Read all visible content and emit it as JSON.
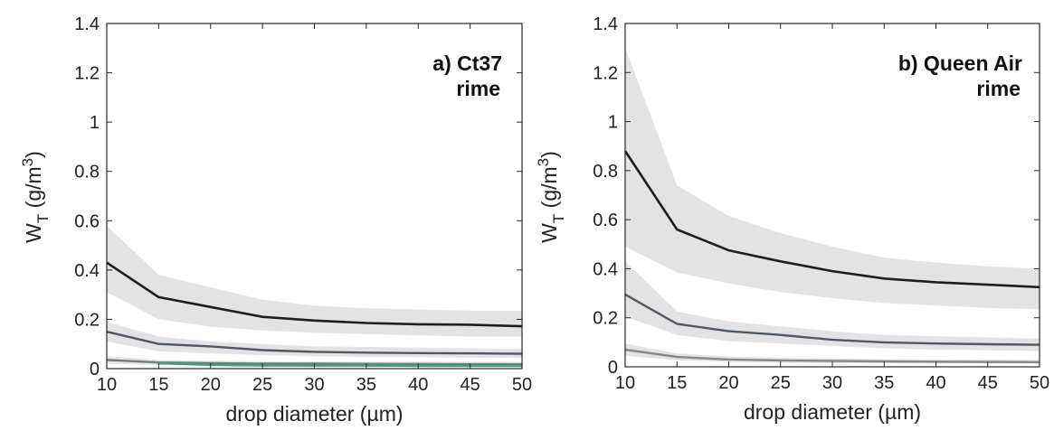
{
  "chart_data": [
    {
      "type": "line",
      "title": "a) Ct37",
      "subtitle": "rime",
      "xlabel": "drop diameter (µm)",
      "ylabel": "W_T (g/m^3)",
      "ylabel_main": "W",
      "ylabel_sub": "T",
      "ylabel_unit": " (g/m",
      "ylabel_exp": "3",
      "ylabel_close": ")",
      "xlim": [
        10,
        50
      ],
      "ylim": [
        0,
        1.4
      ],
      "x_ticks": [
        "10",
        "15",
        "20",
        "25",
        "30",
        "35",
        "40",
        "45",
        "50"
      ],
      "y_ticks": [
        "0",
        "0.2",
        "0.4",
        "0.6",
        "0.8",
        "1",
        "1.2",
        "1.4"
      ],
      "x": [
        10,
        15,
        20,
        25,
        30,
        35,
        40,
        45,
        50
      ],
      "series": [
        {
          "color": "#1e1e1e",
          "band_color": "#e3e3e4",
          "values": [
            0.43,
            0.29,
            0.25,
            0.21,
            0.195,
            0.185,
            0.18,
            0.178,
            0.172
          ],
          "upper": [
            0.58,
            0.38,
            0.33,
            0.28,
            0.255,
            0.245,
            0.24,
            0.235,
            0.235
          ],
          "lower": [
            0.31,
            0.2,
            0.17,
            0.155,
            0.145,
            0.14,
            0.135,
            0.13,
            0.13
          ]
        },
        {
          "color": "#4f5964",
          "band_color": "#e3e3e4",
          "values": [
            0.15,
            0.1,
            0.09,
            0.075,
            0.068,
            0.065,
            0.063,
            0.062,
            0.06
          ],
          "upper": [
            0.19,
            0.13,
            0.11,
            0.1,
            0.09,
            0.088,
            0.085,
            0.082,
            0.08
          ],
          "lower": [
            0.11,
            0.07,
            0.062,
            0.055,
            0.05,
            0.048,
            0.046,
            0.045,
            0.043
          ]
        },
        {
          "color": "#6f7c80",
          "band_color": "#e3e3e4",
          "values": [
            0.035,
            0.025,
            0.022,
            0.02,
            0.02,
            0.019,
            0.019,
            0.018,
            0.018
          ],
          "upper": [
            0.05,
            0.035,
            0.032,
            0.03,
            0.029,
            0.028,
            0.028,
            0.027,
            0.027
          ],
          "lower": [
            0.02,
            0.015,
            0.013,
            0.012,
            0.012,
            0.011,
            0.011,
            0.011,
            0.011
          ]
        },
        {
          "color": "#3fa07c",
          "band_color": null,
          "values": [
            null,
            0.022,
            0.015,
            0.013,
            0.012,
            0.012,
            0.011,
            0.011,
            0.011
          ]
        }
      ]
    },
    {
      "type": "line",
      "title": "b) Queen Air",
      "subtitle": "rime",
      "xlabel": "drop diameter (µm)",
      "ylabel": "W_T (g/m^3)",
      "ylabel_main": "W",
      "ylabel_sub": "T",
      "ylabel_unit": " (g/m",
      "ylabel_exp": "3",
      "ylabel_close": ")",
      "xlim": [
        10,
        50
      ],
      "ylim": [
        0,
        1.4
      ],
      "x_ticks": [
        "10",
        "15",
        "20",
        "25",
        "30",
        "35",
        "40",
        "45",
        "50"
      ],
      "y_ticks": [
        "0",
        "0.2",
        "0.4",
        "0.6",
        "0.8",
        "1",
        "1.2",
        "1.4"
      ],
      "x": [
        10,
        15,
        20,
        25,
        30,
        35,
        40,
        45,
        50
      ],
      "series": [
        {
          "color": "#1e1e1e",
          "band_color": "#e3e3e4",
          "values": [
            0.88,
            0.56,
            0.475,
            0.43,
            0.39,
            0.36,
            0.345,
            0.335,
            0.325
          ],
          "upper": [
            1.3,
            0.74,
            0.615,
            0.545,
            0.49,
            0.445,
            0.425,
            0.41,
            0.4
          ],
          "lower": [
            0.49,
            0.385,
            0.34,
            0.305,
            0.28,
            0.26,
            0.25,
            0.24,
            0.235
          ]
        },
        {
          "color": "#4f5964",
          "band_color": "#e3e3e4",
          "values": [
            0.295,
            0.175,
            0.145,
            0.13,
            0.11,
            0.1,
            0.095,
            0.092,
            0.09
          ],
          "upper": [
            0.43,
            0.225,
            0.185,
            0.165,
            0.145,
            0.13,
            0.125,
            0.12,
            0.115
          ],
          "lower": [
            0.205,
            0.13,
            0.105,
            0.095,
            0.085,
            0.075,
            0.07,
            0.067,
            0.065
          ]
        },
        {
          "color": "#808a8e",
          "band_color": "#e3e3e4",
          "values": [
            0.07,
            0.04,
            0.03,
            0.026,
            0.024,
            0.022,
            0.021,
            0.02,
            0.019
          ],
          "upper": [
            0.095,
            0.055,
            0.042,
            0.037,
            0.034,
            0.031,
            0.03,
            0.029,
            0.028
          ],
          "lower": [
            0.045,
            0.026,
            0.02,
            0.017,
            0.015,
            0.014,
            0.013,
            0.013,
            0.012
          ]
        }
      ]
    }
  ]
}
